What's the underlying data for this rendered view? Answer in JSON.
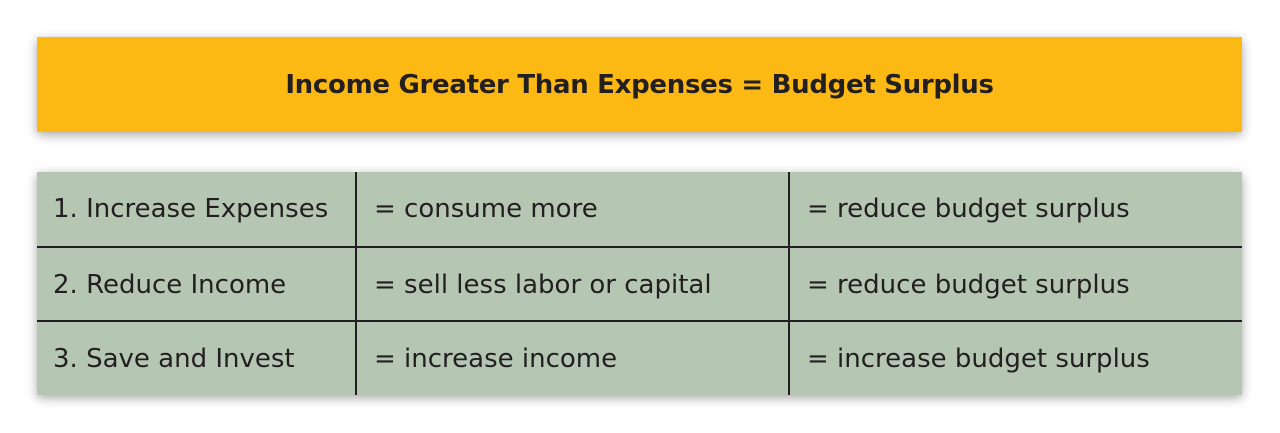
{
  "header": {
    "title": "Income Greater Than Expenses = Budget Surplus"
  },
  "table": {
    "rows": [
      [
        "1. Increase Expenses",
        "= consume more",
        "= reduce budget surplus"
      ],
      [
        "2. Reduce Income",
        "= sell less labor or capital",
        "= reduce budget surplus"
      ],
      [
        "3. Save and Invest",
        "= increase income",
        "= increase budget surplus"
      ]
    ]
  },
  "colors": {
    "banner": "#fdb913",
    "table_background": "#b5c7b3",
    "text": "#231f20"
  }
}
